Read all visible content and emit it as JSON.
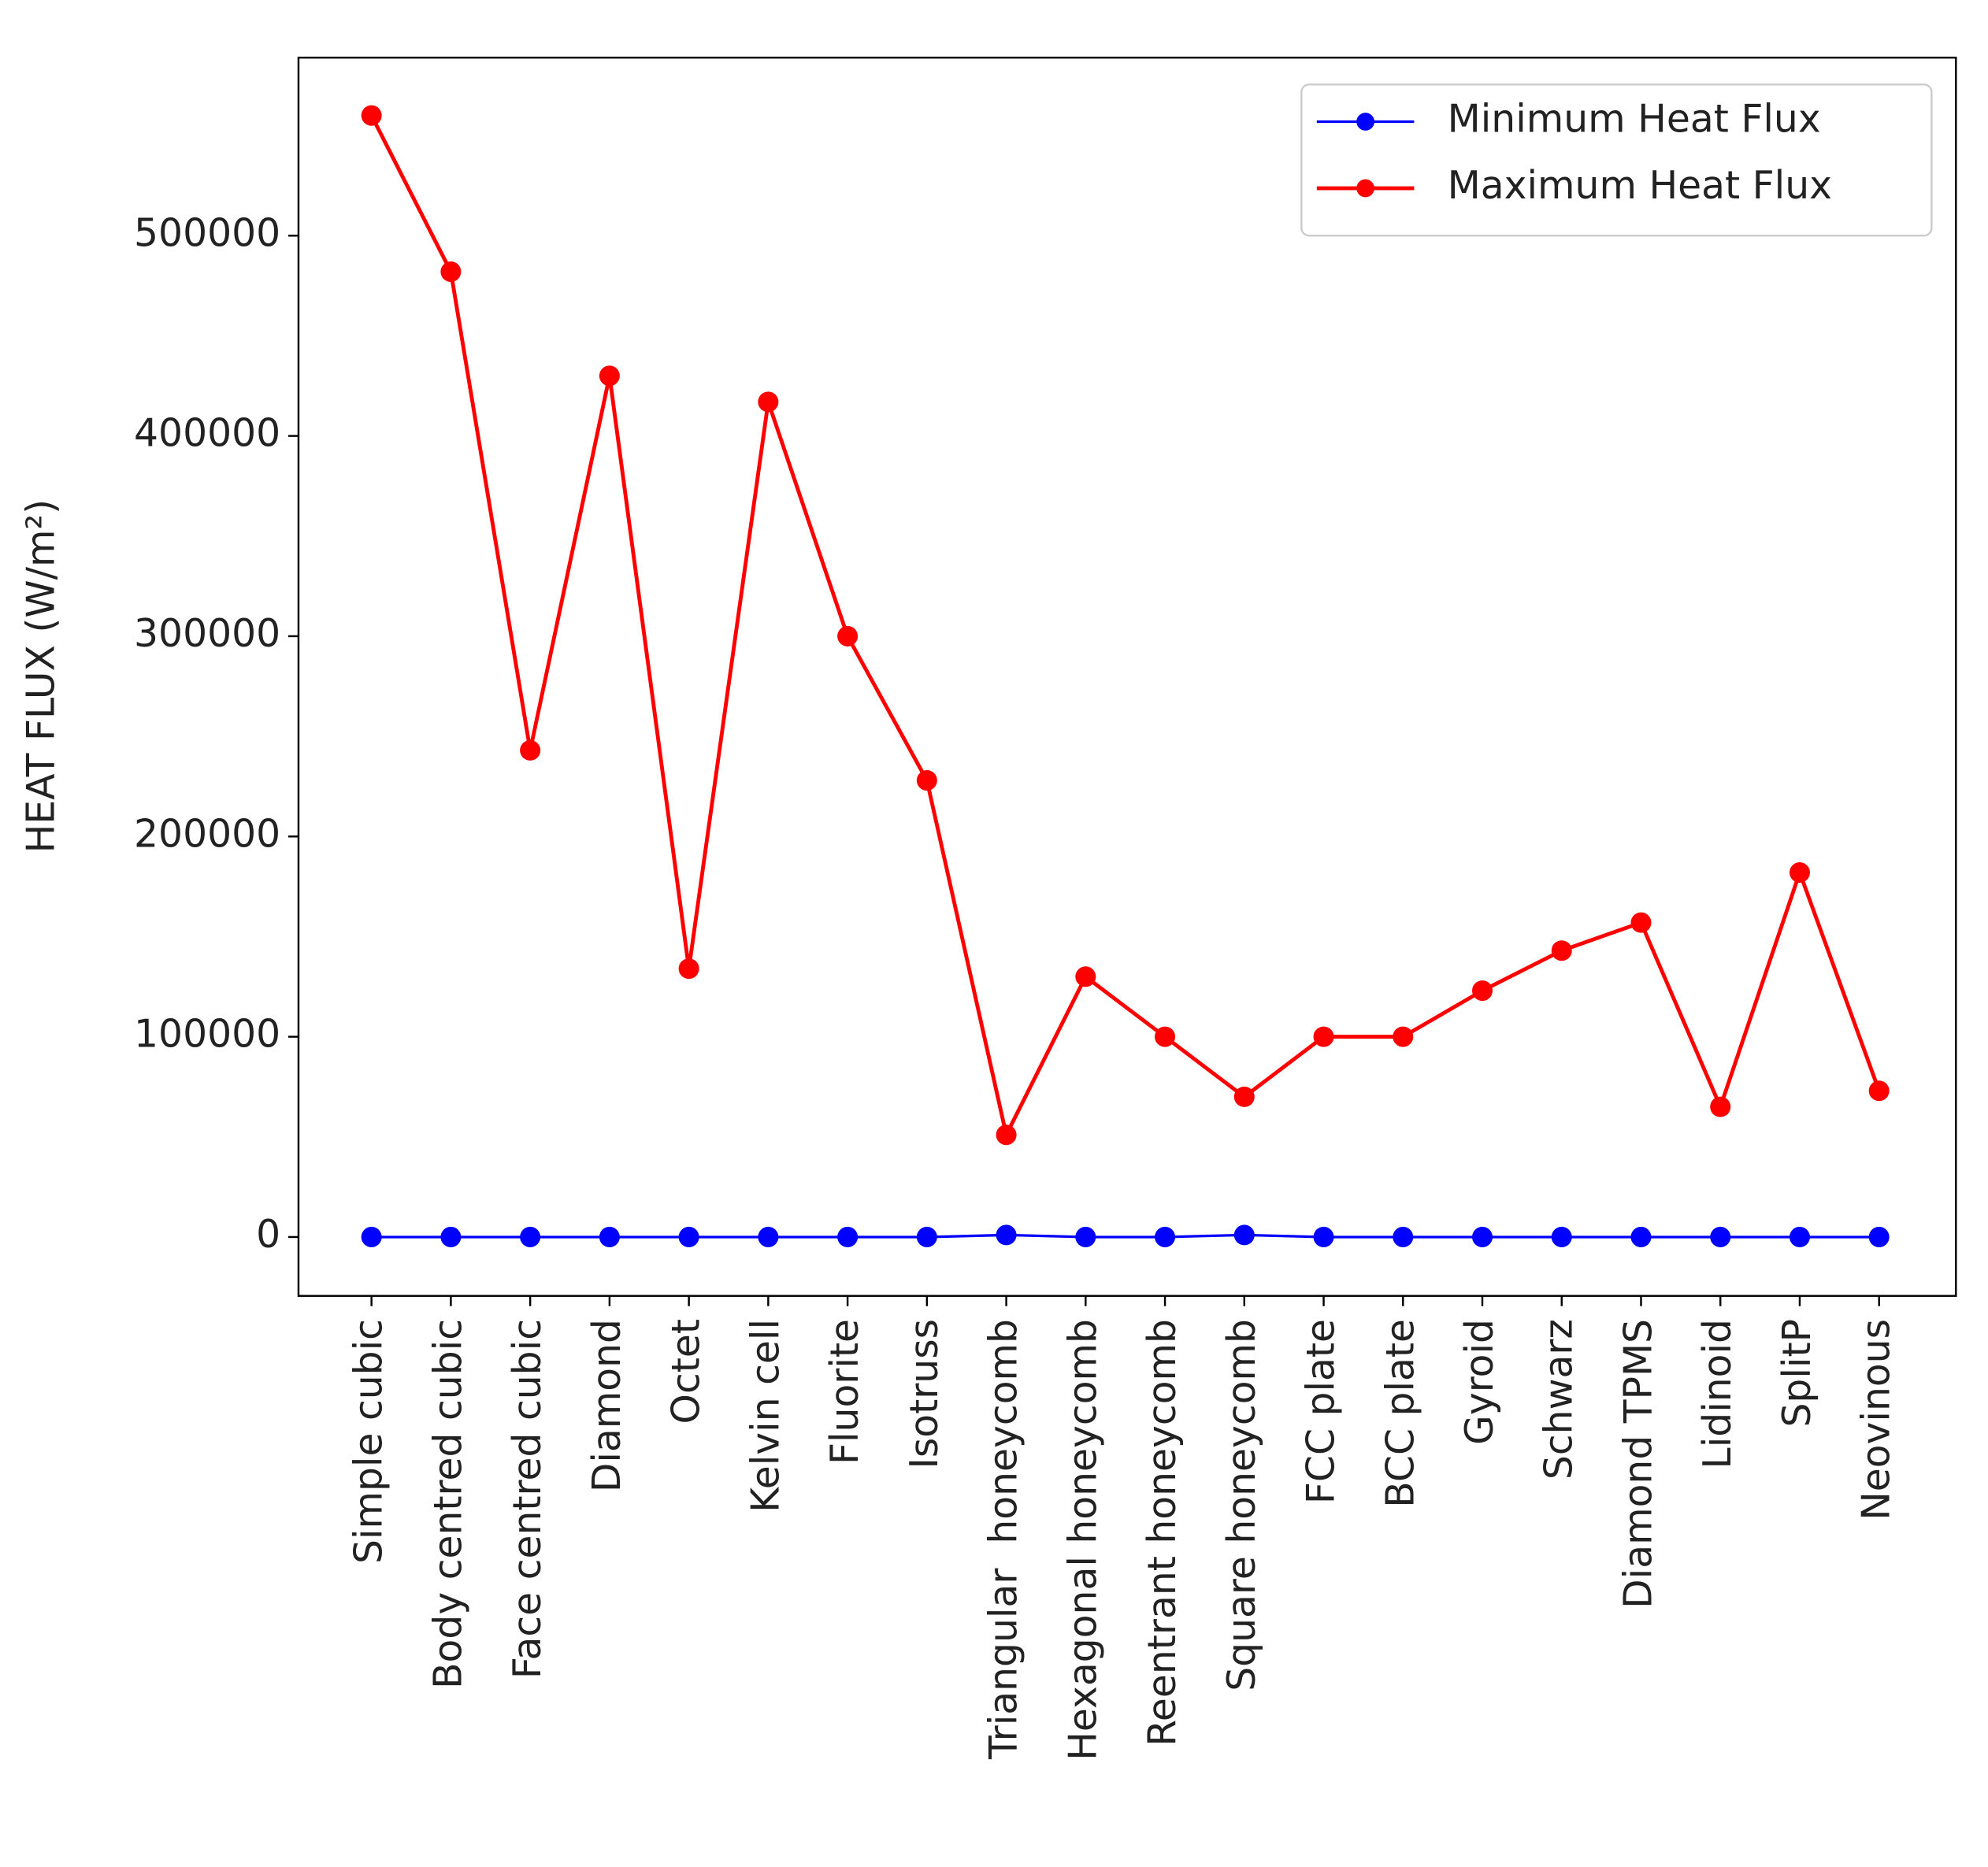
{
  "chart_data": {
    "type": "line",
    "y_label": "HEAT FLUX (W/m²)",
    "categories": [
      "Simple cubic",
      "Body centred cubic",
      "Face centred cubic",
      "Diamond",
      "Octet",
      "Kelvin cell",
      "Fluorite",
      "Isotruss",
      "Triangular  honeycomb",
      "Hexagonal honeycomb",
      "Reentrant honeycomb",
      "Square honeycomb",
      "FCC plate",
      "BCC plate",
      "Gyroid",
      "Schwarz",
      "Diamond TPMS",
      "Lidinoid",
      "SplitP",
      "Neovinous"
    ],
    "series": [
      {
        "name": "Minimum Heat Flux",
        "color": "#0000ff",
        "values": [
          0,
          0,
          0,
          0,
          0,
          0,
          0,
          0,
          1000,
          0,
          0,
          1000,
          0,
          0,
          0,
          0,
          0,
          0,
          0,
          0
        ]
      },
      {
        "name": "Maximum Heat Flux",
        "color": "#ff0000",
        "values": [
          560000,
          482000,
          243000,
          430000,
          134000,
          417000,
          300000,
          228000,
          51000,
          130000,
          100000,
          70000,
          100000,
          100000,
          123000,
          143000,
          157000,
          65000,
          182000,
          73000
        ]
      }
    ],
    "ylim": [
      -29400,
      588900
    ],
    "yticks": [
      0,
      100000,
      200000,
      300000,
      400000,
      500000
    ],
    "legend": "upper right"
  }
}
